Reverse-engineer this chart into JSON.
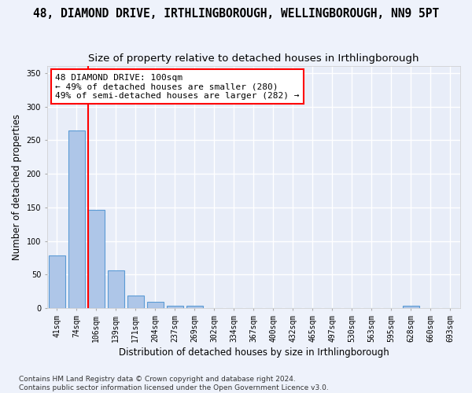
{
  "title": "48, DIAMOND DRIVE, IRTHLINGBOROUGH, WELLINGBOROUGH, NN9 5PT",
  "subtitle": "Size of property relative to detached houses in Irthlingborough",
  "xlabel": "Distribution of detached houses by size in Irthlingborough",
  "ylabel": "Number of detached properties",
  "footer": "Contains HM Land Registry data © Crown copyright and database right 2024.\nContains public sector information licensed under the Open Government Licence v3.0.",
  "categories": [
    "41sqm",
    "74sqm",
    "106sqm",
    "139sqm",
    "171sqm",
    "204sqm",
    "237sqm",
    "269sqm",
    "302sqm",
    "334sqm",
    "367sqm",
    "400sqm",
    "432sqm",
    "465sqm",
    "497sqm",
    "530sqm",
    "563sqm",
    "595sqm",
    "628sqm",
    "660sqm",
    "693sqm"
  ],
  "values": [
    78,
    265,
    147,
    56,
    19,
    10,
    4,
    4,
    0,
    0,
    0,
    0,
    0,
    0,
    0,
    0,
    0,
    0,
    4,
    0,
    0
  ],
  "bar_color": "#aec6e8",
  "bar_edge_color": "#5b9bd5",
  "red_line_bar_index": 2,
  "annotation_text": "48 DIAMOND DRIVE: 100sqm\n← 49% of detached houses are smaller (280)\n49% of semi-detached houses are larger (282) →",
  "ylim": [
    0,
    360
  ],
  "yticks": [
    0,
    50,
    100,
    150,
    200,
    250,
    300,
    350
  ],
  "fig_bg": "#eef2fb",
  "plot_bg": "#e8edf8",
  "grid_color": "#ffffff",
  "title_fontsize": 10.5,
  "subtitle_fontsize": 9.5,
  "ylabel_fontsize": 8.5,
  "xlabel_fontsize": 8.5,
  "tick_fontsize": 7,
  "annot_fontsize": 8,
  "footer_fontsize": 6.5
}
